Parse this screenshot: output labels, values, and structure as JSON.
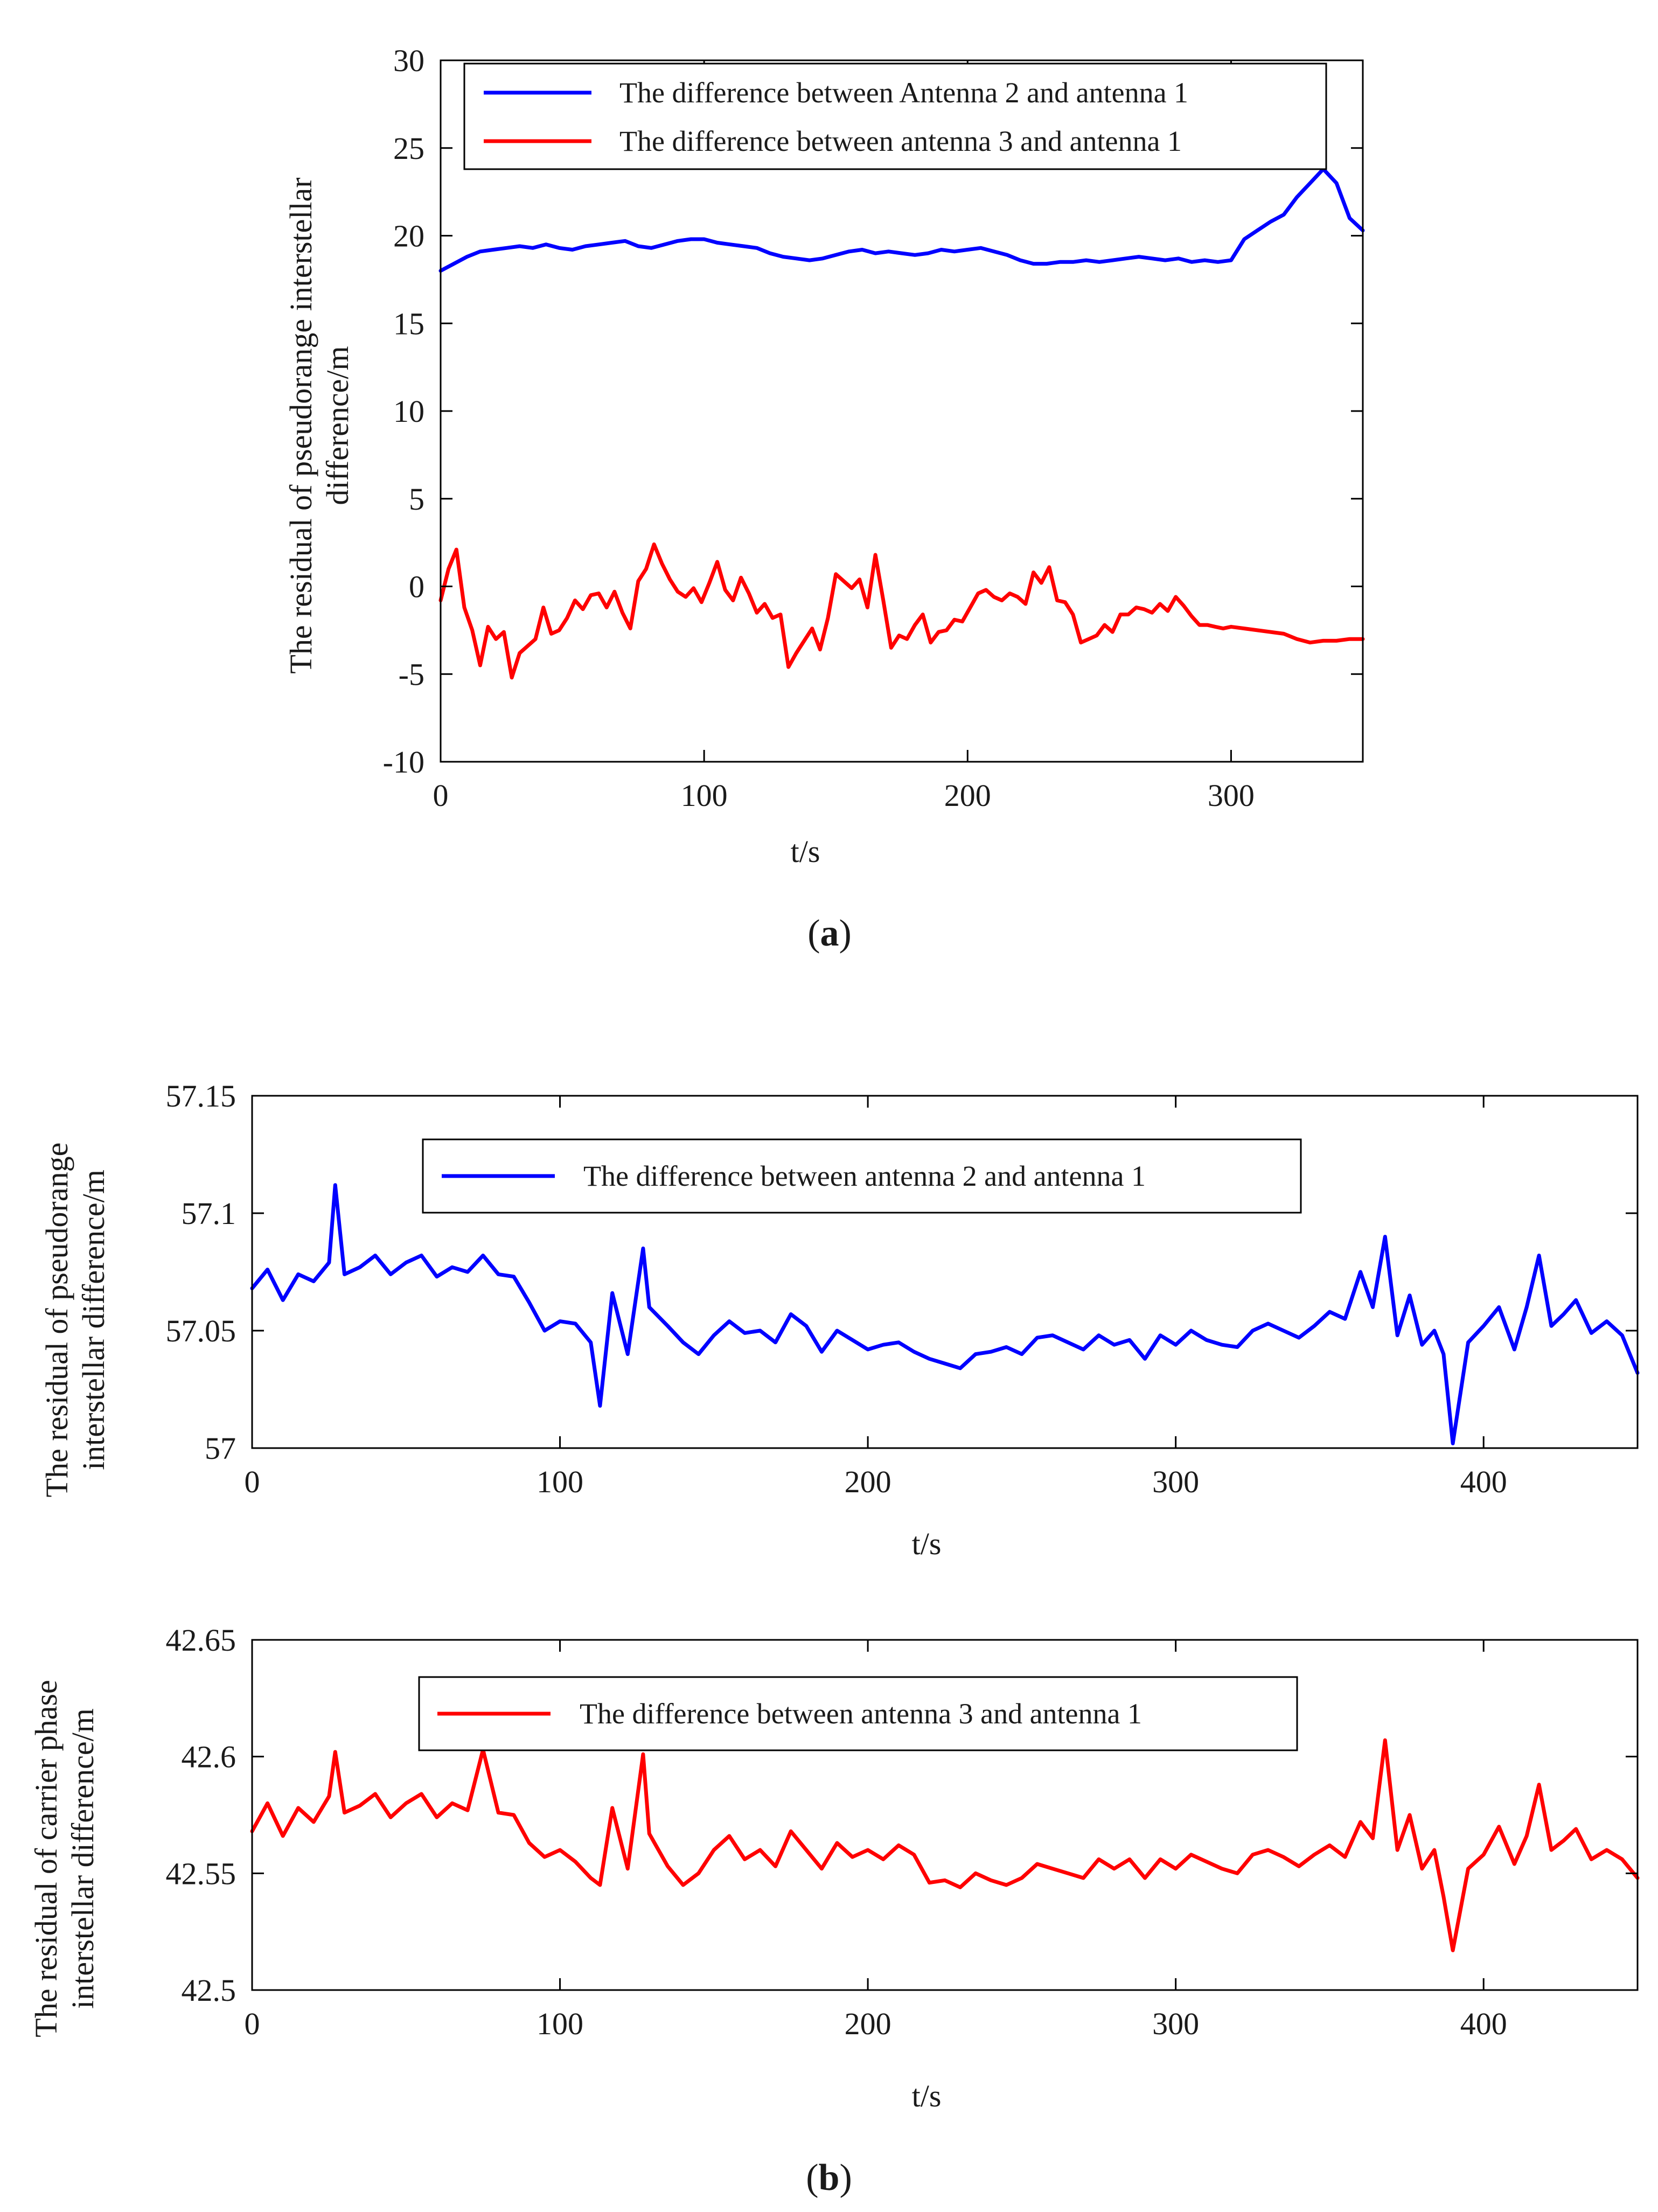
{
  "colors": {
    "blue": "#0000ff",
    "red": "#ff0000"
  },
  "chart_data": [
    {
      "id": "a",
      "type": "line",
      "caption_label": "a",
      "xlabel": "t/s",
      "ylabel_lines": [
        "The residual of pseudorange interstellar",
        "difference/m"
      ],
      "xlim": [
        0,
        350
      ],
      "ylim": [
        -10,
        30
      ],
      "x_ticks": [
        0,
        100,
        200,
        300
      ],
      "x_tick_labels": [
        "0",
        "100",
        "200",
        "300"
      ],
      "y_ticks": [
        -10,
        -5,
        0,
        5,
        10,
        15,
        20,
        25,
        30
      ],
      "y_tick_labels": [
        "-10",
        "-5",
        "0",
        "5",
        "10",
        "15",
        "20",
        "25",
        "30"
      ],
      "legend": [
        "The difference between Antenna 2 and antenna 1",
        "The difference between antenna 3 and antenna 1"
      ],
      "series": [
        {
          "name": "The difference between Antenna 2 and antenna 1",
          "color": "#0000ff",
          "x": [
            0,
            5,
            10,
            15,
            20,
            25,
            30,
            35,
            40,
            45,
            50,
            55,
            60,
            65,
            70,
            75,
            80,
            85,
            90,
            95,
            100,
            105,
            110,
            115,
            120,
            125,
            130,
            135,
            140,
            145,
            150,
            155,
            160,
            165,
            170,
            175,
            180,
            185,
            190,
            195,
            200,
            205,
            210,
            215,
            220,
            225,
            230,
            235,
            240,
            245,
            250,
            255,
            260,
            265,
            270,
            275,
            280,
            285,
            290,
            295,
            300,
            305,
            310,
            315,
            320,
            325,
            330,
            335,
            340,
            345,
            350
          ],
          "y": [
            18.0,
            18.4,
            18.8,
            19.1,
            19.2,
            19.3,
            19.4,
            19.3,
            19.5,
            19.3,
            19.2,
            19.4,
            19.5,
            19.6,
            19.7,
            19.4,
            19.3,
            19.5,
            19.7,
            19.8,
            19.8,
            19.6,
            19.5,
            19.4,
            19.3,
            19.0,
            18.8,
            18.7,
            18.6,
            18.7,
            18.9,
            19.1,
            19.2,
            19.0,
            19.1,
            19.0,
            18.9,
            19.0,
            19.2,
            19.1,
            19.2,
            19.3,
            19.1,
            18.9,
            18.6,
            18.4,
            18.4,
            18.5,
            18.5,
            18.6,
            18.5,
            18.6,
            18.7,
            18.8,
            18.7,
            18.6,
            18.7,
            18.5,
            18.6,
            18.5,
            18.6,
            19.8,
            20.3,
            20.8,
            21.2,
            22.2,
            23.0,
            23.8,
            23.0,
            21.0,
            20.3
          ]
        },
        {
          "name": "The difference between antenna 3 and antenna 1",
          "color": "#ff0000",
          "x": [
            0,
            3,
            6,
            9,
            12,
            15,
            18,
            21,
            24,
            27,
            30,
            33,
            36,
            39,
            42,
            45,
            48,
            51,
            54,
            57,
            60,
            63,
            66,
            69,
            72,
            75,
            78,
            81,
            84,
            87,
            90,
            93,
            96,
            99,
            102,
            105,
            108,
            111,
            114,
            117,
            120,
            123,
            126,
            129,
            132,
            135,
            138,
            141,
            144,
            147,
            150,
            153,
            156,
            159,
            162,
            165,
            168,
            171,
            174,
            177,
            180,
            183,
            186,
            189,
            192,
            195,
            198,
            201,
            204,
            207,
            210,
            213,
            216,
            219,
            222,
            225,
            228,
            231,
            234,
            237,
            240,
            243,
            246,
            249,
            252,
            255,
            258,
            261,
            264,
            267,
            270,
            273,
            276,
            279,
            282,
            285,
            288,
            291,
            294,
            297,
            300,
            305,
            310,
            315,
            320,
            325,
            330,
            335,
            340,
            345,
            350
          ],
          "y": [
            -0.8,
            1.0,
            2.1,
            -1.2,
            -2.5,
            -4.5,
            -2.3,
            -3.0,
            -2.6,
            -5.2,
            -3.8,
            -3.4,
            -3.0,
            -1.2,
            -2.7,
            -2.5,
            -1.8,
            -0.8,
            -1.3,
            -0.5,
            -0.4,
            -1.2,
            -0.3,
            -1.5,
            -2.4,
            0.3,
            1.0,
            2.4,
            1.3,
            0.4,
            -0.3,
            -0.6,
            -0.1,
            -0.9,
            0.2,
            1.4,
            -0.2,
            -0.8,
            0.5,
            -0.4,
            -1.5,
            -1.0,
            -1.8,
            -1.6,
            -4.6,
            -3.8,
            -3.1,
            -2.4,
            -3.6,
            -1.8,
            0.7,
            0.3,
            -0.1,
            0.4,
            -1.2,
            1.8,
            -0.8,
            -3.5,
            -2.8,
            -3.0,
            -2.2,
            -1.6,
            -3.2,
            -2.6,
            -2.5,
            -1.9,
            -2.0,
            -1.2,
            -0.4,
            -0.2,
            -0.6,
            -0.8,
            -0.4,
            -0.6,
            -1.0,
            0.8,
            0.2,
            1.1,
            -0.8,
            -0.9,
            -1.6,
            -3.2,
            -3.0,
            -2.8,
            -2.2,
            -2.6,
            -1.6,
            -1.6,
            -1.2,
            -1.3,
            -1.5,
            -1.0,
            -1.4,
            -0.6,
            -1.1,
            -1.7,
            -2.2,
            -2.2,
            -2.3,
            -2.4,
            -2.3,
            -2.4,
            -2.5,
            -2.6,
            -2.7,
            -3.0,
            -3.2,
            -3.1,
            -3.1,
            -3.0,
            -3.0
          ]
        }
      ]
    },
    {
      "id": "b1",
      "type": "line",
      "xlabel": "t/s",
      "ylabel_lines": [
        "The residual of pseudorange",
        "interstellar difference/m"
      ],
      "xlim": [
        0,
        450
      ],
      "ylim": [
        57.0,
        57.15
      ],
      "x_ticks": [
        0,
        100,
        200,
        300,
        400
      ],
      "x_tick_labels": [
        "0",
        "100",
        "200",
        "300",
        "400"
      ],
      "y_ticks": [
        57.0,
        57.05,
        57.1,
        57.15
      ],
      "y_tick_labels": [
        "57",
        "57.05",
        "57.1",
        "57.15"
      ],
      "legend": [
        "The difference between antenna 2 and antenna 1"
      ],
      "series": [
        {
          "name": "The difference between antenna 2 and antenna 1",
          "color": "#0000ff",
          "x": [
            0,
            5,
            10,
            15,
            20,
            25,
            27,
            30,
            35,
            40,
            45,
            50,
            55,
            60,
            65,
            70,
            75,
            80,
            85,
            90,
            95,
            100,
            105,
            110,
            113,
            117,
            122,
            127,
            129,
            135,
            140,
            145,
            150,
            155,
            160,
            165,
            170,
            175,
            180,
            185,
            190,
            195,
            200,
            205,
            210,
            215,
            220,
            225,
            230,
            235,
            240,
            245,
            250,
            255,
            260,
            265,
            270,
            275,
            280,
            285,
            290,
            295,
            300,
            305,
            310,
            315,
            320,
            325,
            330,
            335,
            340,
            345,
            350,
            355,
            360,
            364,
            368,
            372,
            376,
            380,
            384,
            387,
            390,
            395,
            400,
            405,
            410,
            414,
            418,
            422,
            426,
            430,
            435,
            440,
            445,
            450
          ],
          "y": [
            57.068,
            57.076,
            57.063,
            57.074,
            57.071,
            57.079,
            57.112,
            57.074,
            57.077,
            57.082,
            57.074,
            57.079,
            57.082,
            57.073,
            57.077,
            57.075,
            57.082,
            57.074,
            57.073,
            57.062,
            57.05,
            57.054,
            57.053,
            57.045,
            57.018,
            57.066,
            57.04,
            57.085,
            57.06,
            57.052,
            57.045,
            57.04,
            57.048,
            57.054,
            57.049,
            57.05,
            57.045,
            57.057,
            57.052,
            57.041,
            57.05,
            57.046,
            57.042,
            57.044,
            57.045,
            57.041,
            57.038,
            57.036,
            57.034,
            57.04,
            57.041,
            57.043,
            57.04,
            57.047,
            57.048,
            57.045,
            57.042,
            57.048,
            57.044,
            57.046,
            57.038,
            57.048,
            57.044,
            57.05,
            57.046,
            57.044,
            57.043,
            57.05,
            57.053,
            57.05,
            57.047,
            57.052,
            57.058,
            57.055,
            57.075,
            57.06,
            57.09,
            57.048,
            57.065,
            57.044,
            57.05,
            57.04,
            57.002,
            57.045,
            57.052,
            57.06,
            57.042,
            57.06,
            57.082,
            57.052,
            57.057,
            57.063,
            57.049,
            57.054,
            57.048,
            57.032
          ]
        }
      ]
    },
    {
      "id": "b2",
      "type": "line",
      "caption_label": "b",
      "xlabel": "t/s",
      "ylabel_lines": [
        "The residual of carrier phase",
        "interstellar difference/m"
      ],
      "xlim": [
        0,
        450
      ],
      "ylim": [
        42.5,
        42.65
      ],
      "x_ticks": [
        0,
        100,
        200,
        300,
        400
      ],
      "x_tick_labels": [
        "0",
        "100",
        "200",
        "300",
        "400"
      ],
      "y_ticks": [
        42.5,
        42.55,
        42.6,
        42.65
      ],
      "y_tick_labels": [
        "42.5",
        "42.55",
        "42.6",
        "42.65"
      ],
      "legend": [
        "The difference between antenna 3 and antenna 1"
      ],
      "series": [
        {
          "name": "The difference between antenna 3 and antenna 1",
          "color": "#ff0000",
          "x": [
            0,
            5,
            10,
            15,
            20,
            25,
            27,
            30,
            35,
            40,
            45,
            50,
            55,
            60,
            65,
            70,
            75,
            80,
            85,
            90,
            95,
            100,
            105,
            110,
            113,
            117,
            122,
            127,
            129,
            135,
            140,
            145,
            150,
            155,
            160,
            165,
            170,
            175,
            180,
            185,
            190,
            195,
            200,
            205,
            210,
            215,
            220,
            225,
            230,
            235,
            240,
            245,
            250,
            255,
            260,
            265,
            270,
            275,
            280,
            285,
            290,
            295,
            300,
            305,
            310,
            315,
            320,
            325,
            330,
            335,
            340,
            345,
            350,
            355,
            360,
            364,
            368,
            372,
            376,
            380,
            384,
            387,
            390,
            395,
            400,
            405,
            410,
            414,
            418,
            422,
            426,
            430,
            435,
            440,
            445,
            450
          ],
          "y": [
            42.568,
            42.58,
            42.566,
            42.578,
            42.572,
            42.583,
            42.602,
            42.576,
            42.579,
            42.584,
            42.574,
            42.58,
            42.584,
            42.574,
            42.58,
            42.577,
            42.603,
            42.576,
            42.575,
            42.563,
            42.557,
            42.56,
            42.555,
            42.548,
            42.545,
            42.578,
            42.552,
            42.601,
            42.567,
            42.553,
            42.545,
            42.55,
            42.56,
            42.566,
            42.556,
            42.56,
            42.553,
            42.568,
            42.56,
            42.552,
            42.563,
            42.557,
            42.56,
            42.556,
            42.562,
            42.558,
            42.546,
            42.547,
            42.544,
            42.55,
            42.547,
            42.545,
            42.548,
            42.554,
            42.552,
            42.55,
            42.548,
            42.556,
            42.552,
            42.556,
            42.548,
            42.556,
            42.552,
            42.558,
            42.555,
            42.552,
            42.55,
            42.558,
            42.56,
            42.557,
            42.553,
            42.558,
            42.562,
            42.557,
            42.572,
            42.565,
            42.607,
            42.56,
            42.575,
            42.552,
            42.56,
            42.54,
            42.517,
            42.552,
            42.558,
            42.57,
            42.554,
            42.566,
            42.588,
            42.56,
            42.564,
            42.569,
            42.556,
            42.56,
            42.556,
            42.548
          ]
        }
      ]
    }
  ]
}
